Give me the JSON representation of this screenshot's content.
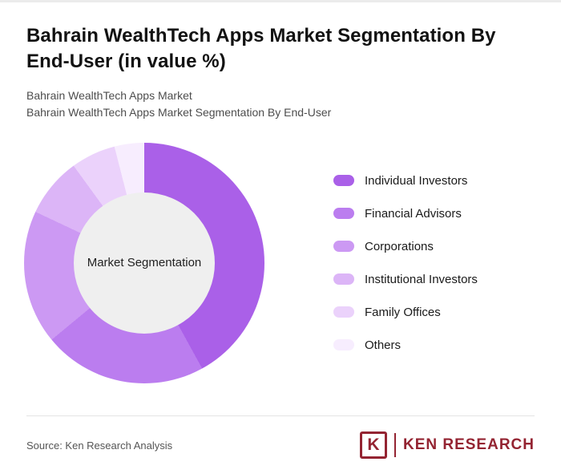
{
  "page": {
    "title": "Bahrain WealthTech Apps Market Segmentation By End-User (in value %)",
    "subtitle1": "Bahrain WealthTech Apps Market",
    "subtitle2": "Bahrain WealthTech Apps Market Segmentation By End-User",
    "source": "Source: Ken Research Analysis",
    "brand_letter": "K",
    "brand_name": "KEN RESEARCH",
    "brand_color": "#942432"
  },
  "chart_data": {
    "type": "pie",
    "donut": true,
    "title": "Bahrain WealthTech Apps Market Segmentation By End-User (in value %)",
    "center_label": "Market Segmentation",
    "legend_position": "right",
    "hole_color": "#efefef",
    "segments": [
      {
        "label": "Individual Investors",
        "value": 42,
        "color": "#aa60e8"
      },
      {
        "label": "Financial Advisors",
        "value": 22,
        "color": "#bb7def"
      },
      {
        "label": "Corporations",
        "value": 18,
        "color": "#cc99f3"
      },
      {
        "label": "Institutional Investors",
        "value": 8,
        "color": "#dcb5f7"
      },
      {
        "label": "Family Offices",
        "value": 6,
        "color": "#ebd2fb"
      },
      {
        "label": "Others",
        "value": 4,
        "color": "#f7edfe"
      }
    ]
  }
}
